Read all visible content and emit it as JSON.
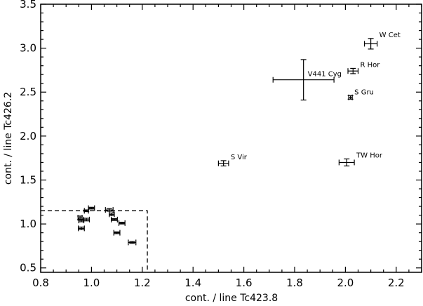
{
  "chart_data": {
    "type": "scatter",
    "title": "",
    "xlabel": "cont. / line Tc423.8",
    "ylabel": "cont. / line Tc426.2",
    "xlim": [
      0.8,
      2.3
    ],
    "ylim": [
      0.45,
      3.5
    ],
    "xticks": [
      0.8,
      1.0,
      1.2,
      1.4,
      1.6,
      1.8,
      2.0,
      2.2
    ],
    "xtick_labels": [
      "0.8",
      "1.0",
      "1.2",
      "1.4",
      "1.6",
      "1.8",
      "2.0",
      "2.2"
    ],
    "yticks": [
      0.5,
      1.0,
      1.5,
      2.0,
      2.5,
      3.0,
      3.5
    ],
    "ytick_labels": [
      "0.5",
      "1.0",
      "1.5",
      "2.0",
      "2.5",
      "3.0",
      "3.5"
    ],
    "grid": false,
    "dashed_region": {
      "x_max": 1.22,
      "y_max": 1.15
    },
    "labeled_points": [
      {
        "label": "W Cet",
        "x": 2.1,
        "y": 3.05,
        "xerr": 0.025,
        "yerr": 0.06
      },
      {
        "label": "R Hor",
        "x": 2.03,
        "y": 2.74,
        "xerr": 0.02,
        "yerr": 0.03
      },
      {
        "label": "V441 Cyg",
        "x": 1.835,
        "y": 2.64,
        "xerr": 0.12,
        "yerr": 0.23
      },
      {
        "label": "S Gru",
        "x": 2.02,
        "y": 2.44,
        "xerr": 0.007,
        "yerr": 0.02
      },
      {
        "label": "S Vir",
        "x": 1.52,
        "y": 1.69,
        "xerr": 0.02,
        "yerr": 0.03
      },
      {
        "label": "TW Hor",
        "x": 2.005,
        "y": 1.7,
        "xerr": 0.03,
        "yerr": 0.04
      }
    ],
    "unlabeled_points": [
      {
        "x": 0.955,
        "y": 1.07,
        "xerr": 0.008,
        "yerr": 0.02
      },
      {
        "x": 0.96,
        "y": 1.04,
        "xerr": 0.01,
        "yerr": 0.015
      },
      {
        "x": 0.98,
        "y": 1.05,
        "xerr": 0.012,
        "yerr": 0.015
      },
      {
        "x": 0.96,
        "y": 0.95,
        "xerr": 0.012,
        "yerr": 0.015
      },
      {
        "x": 0.98,
        "y": 1.15,
        "xerr": 0.008,
        "yerr": 0.01
      },
      {
        "x": 1.0,
        "y": 1.18,
        "xerr": 0.012,
        "yerr": 0.01
      },
      {
        "x": 1.07,
        "y": 1.16,
        "xerr": 0.015,
        "yerr": 0.015
      },
      {
        "x": 1.08,
        "y": 1.11,
        "xerr": 0.01,
        "yerr": 0.015
      },
      {
        "x": 1.09,
        "y": 1.05,
        "xerr": 0.012,
        "yerr": 0.01
      },
      {
        "x": 1.12,
        "y": 1.01,
        "xerr": 0.012,
        "yerr": 0.01
      },
      {
        "x": 1.1,
        "y": 0.9,
        "xerr": 0.012,
        "yerr": 0.01
      },
      {
        "x": 1.16,
        "y": 0.79,
        "xerr": 0.015,
        "yerr": 0.01
      }
    ]
  }
}
